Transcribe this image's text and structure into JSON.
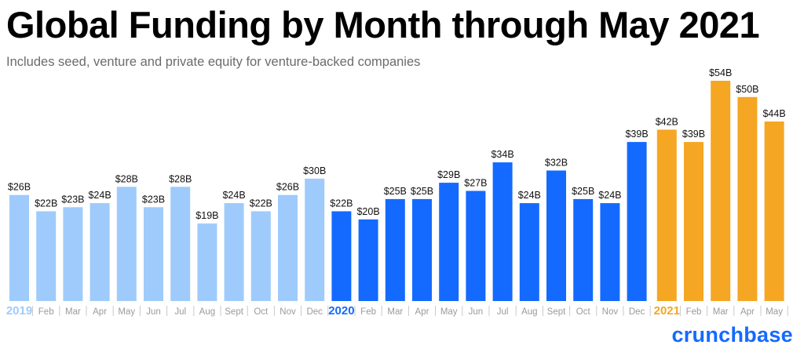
{
  "title": "Global Funding by Month through May 2021",
  "subtitle": "Includes seed, venture and private equity for venture-backed companies",
  "brand": "crunchbase",
  "colors": {
    "2019": "#9ecbfb",
    "2020": "#146aff",
    "2021": "#f5a623",
    "axis_label": "#9a9a9a"
  },
  "chart_data": {
    "type": "bar",
    "ylabel": "",
    "xlabel": "",
    "value_unit": "$B",
    "categories": [
      {
        "year": "2019",
        "label": "2019"
      },
      {
        "year": "2019",
        "label": "Feb"
      },
      {
        "year": "2019",
        "label": "Mar"
      },
      {
        "year": "2019",
        "label": "Apr"
      },
      {
        "year": "2019",
        "label": "May"
      },
      {
        "year": "2019",
        "label": "Jun"
      },
      {
        "year": "2019",
        "label": "Jul"
      },
      {
        "year": "2019",
        "label": "Aug"
      },
      {
        "year": "2019",
        "label": "Sept"
      },
      {
        "year": "2019",
        "label": "Oct"
      },
      {
        "year": "2019",
        "label": "Nov"
      },
      {
        "year": "2019",
        "label": "Dec"
      },
      {
        "year": "2020",
        "label": "2020"
      },
      {
        "year": "2020",
        "label": "Feb"
      },
      {
        "year": "2020",
        "label": "Mar"
      },
      {
        "year": "2020",
        "label": "Apr"
      },
      {
        "year": "2020",
        "label": "May"
      },
      {
        "year": "2020",
        "label": "Jun"
      },
      {
        "year": "2020",
        "label": "Jul"
      },
      {
        "year": "2020",
        "label": "Aug"
      },
      {
        "year": "2020",
        "label": "Sept"
      },
      {
        "year": "2020",
        "label": "Oct"
      },
      {
        "year": "2020",
        "label": "Nov"
      },
      {
        "year": "2020",
        "label": "Dec"
      },
      {
        "year": "2021",
        "label": "2021"
      },
      {
        "year": "2021",
        "label": "Feb"
      },
      {
        "year": "2021",
        "label": "Mar"
      },
      {
        "year": "2021",
        "label": "Apr"
      },
      {
        "year": "2021",
        "label": "May"
      }
    ],
    "values": [
      26,
      22,
      23,
      24,
      28,
      23,
      28,
      19,
      24,
      22,
      26,
      30,
      22,
      20,
      25,
      25,
      29,
      27,
      34,
      24,
      32,
      25,
      24,
      39,
      42,
      39,
      54,
      50,
      44
    ],
    "value_labels": [
      "$26B",
      "$22B",
      "$23B",
      "$24B",
      "$28B",
      "$23B",
      "$28B",
      "$19B",
      "$24B",
      "$22B",
      "$26B",
      "$30B",
      "$22B",
      "$20B",
      "$25B",
      "$25B",
      "$29B",
      "$27B",
      "$34B",
      "$24B",
      "$32B",
      "$25B",
      "$24B",
      "$39B",
      "$42B",
      "$39B",
      "$54B",
      "$50B",
      "$44B"
    ],
    "ylim": [
      0,
      54
    ],
    "grid": false,
    "legend": "none"
  }
}
